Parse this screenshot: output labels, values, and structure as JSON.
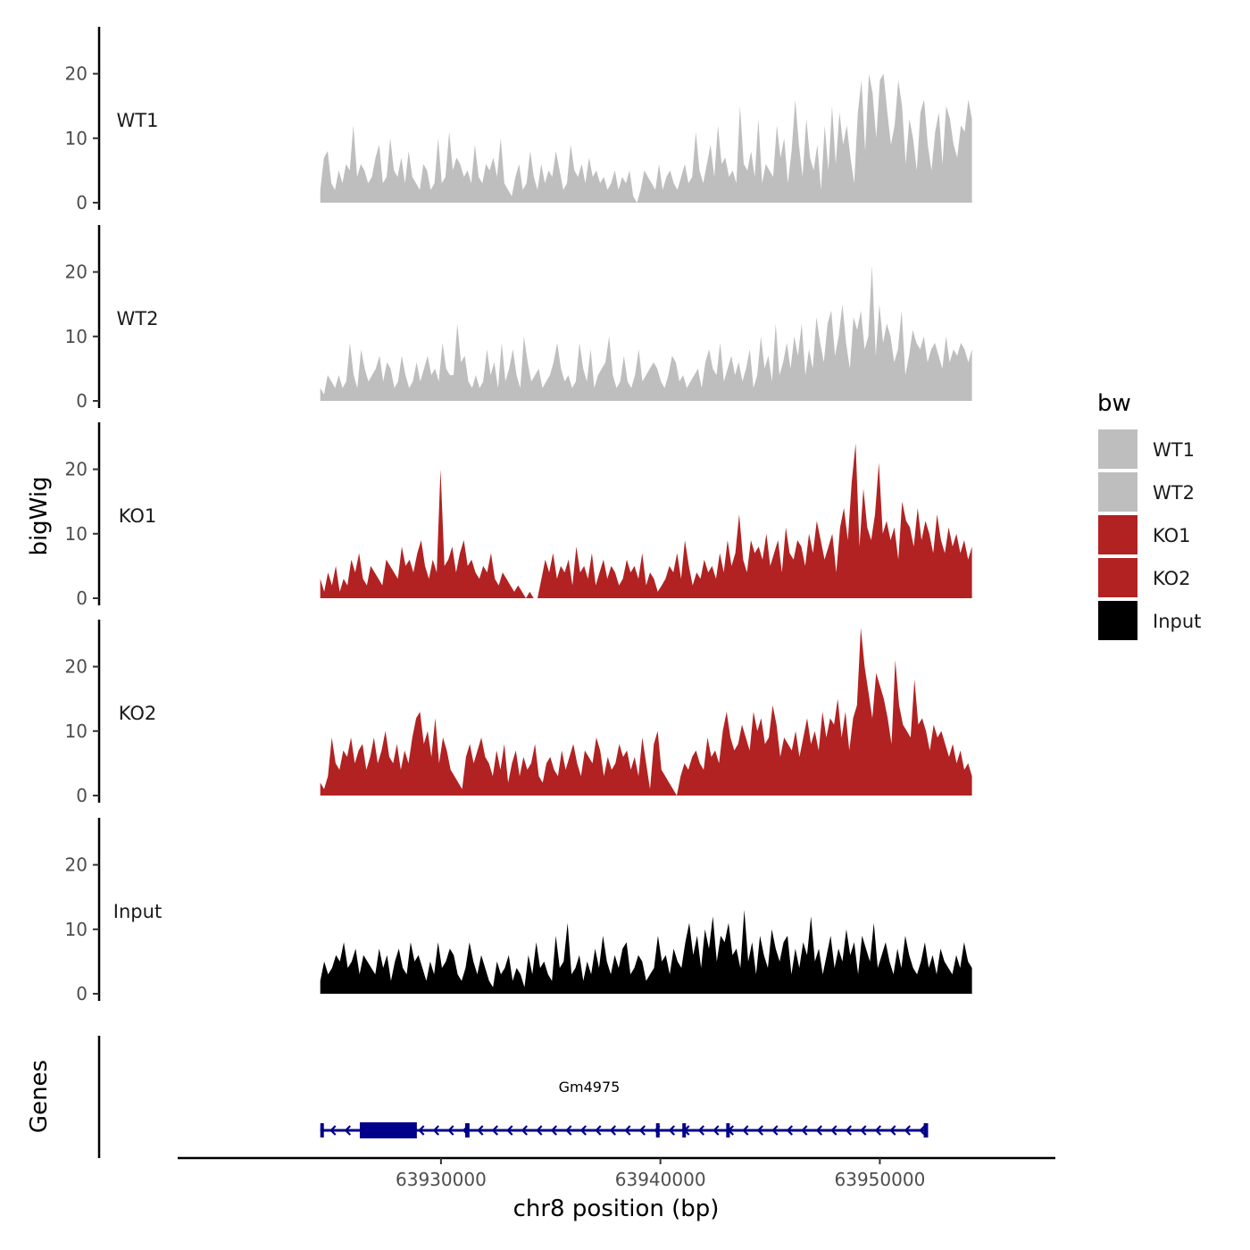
{
  "chart_data": {
    "type": "area",
    "title": "",
    "xlabel": "chr8 position (bp)",
    "ylabel": "bigWig",
    "gene_panel_label": "Genes",
    "xlim": [
      63918000,
      63958000
    ],
    "ylim": [
      0,
      26
    ],
    "x_ticks": [
      63930000,
      63940000,
      63950000
    ],
    "x_tick_labels": [
      "63930000",
      "63940000",
      "63950000"
    ],
    "y_ticks": [
      0,
      10,
      20
    ],
    "y_tick_labels": [
      "0",
      "10",
      "20"
    ],
    "legend": {
      "title": "bw",
      "position": "right",
      "entries": [
        {
          "label": "WT1",
          "color": "#bebebe"
        },
        {
          "label": "WT2",
          "color": "#bebebe"
        },
        {
          "label": "KO1",
          "color": "#b22222"
        },
        {
          "label": "KO2",
          "color": "#b22222"
        },
        {
          "label": "Input",
          "color": "#000000"
        }
      ]
    },
    "x_start": 63924500,
    "x_end": 63954200,
    "series": [
      {
        "name": "WT1",
        "color": "#bebebe",
        "values": [
          2,
          7,
          8,
          3,
          2,
          5,
          3,
          6,
          5,
          12,
          4,
          6,
          5,
          3,
          4,
          7,
          9,
          3,
          4,
          10,
          5,
          4,
          7,
          3,
          8,
          4,
          3,
          2,
          6,
          5,
          2,
          3,
          10,
          3,
          4,
          11,
          5,
          7,
          6,
          4,
          5,
          3,
          9,
          4,
          3,
          6,
          5,
          7,
          4,
          10,
          3,
          2,
          1,
          4,
          6,
          2,
          3,
          8,
          4,
          2,
          6,
          3,
          5,
          4,
          8,
          5,
          2,
          3,
          9,
          5,
          4,
          6,
          3,
          7,
          4,
          5,
          3,
          4,
          2,
          3,
          5,
          2,
          4,
          3,
          5,
          1,
          0,
          2,
          5,
          4,
          3,
          2,
          6,
          2,
          4,
          5,
          3,
          2,
          4,
          6,
          3,
          4,
          11,
          5,
          3,
          6,
          9,
          4,
          12,
          6,
          7,
          4,
          5,
          3,
          15,
          6,
          5,
          8,
          4,
          13,
          3,
          6,
          5,
          4,
          12,
          7,
          10,
          3,
          8,
          16,
          9,
          4,
          13,
          7,
          5,
          9,
          2,
          12,
          5,
          15,
          6,
          14,
          9,
          12,
          7,
          3,
          14,
          19,
          8,
          20,
          17,
          10,
          19,
          20,
          14,
          9,
          12,
          19,
          15,
          6,
          13,
          10,
          5,
          14,
          16,
          9,
          5,
          11,
          14,
          6,
          15,
          13,
          9,
          7,
          12,
          11,
          16,
          13
        ]
      },
      {
        "name": "WT2",
        "color": "#bebebe",
        "values": [
          2,
          1,
          4,
          3,
          2,
          4,
          2,
          3,
          9,
          4,
          2,
          8,
          5,
          3,
          4,
          5,
          7,
          3,
          6,
          5,
          2,
          3,
          7,
          4,
          2,
          3,
          6,
          3,
          5,
          7,
          4,
          5,
          3,
          9,
          5,
          4,
          4,
          12,
          6,
          7,
          3,
          2,
          4,
          2,
          3,
          8,
          4,
          6,
          2,
          9,
          3,
          5,
          8,
          4,
          2,
          10,
          6,
          3,
          4,
          5,
          2,
          3,
          4,
          6,
          9,
          5,
          3,
          4,
          2,
          3,
          9,
          5,
          3,
          8,
          2,
          4,
          5,
          6,
          10,
          4,
          2,
          3,
          7,
          3,
          2,
          4,
          8,
          3,
          4,
          5,
          6,
          5,
          3,
          2,
          4,
          7,
          6,
          3,
          4,
          2,
          3,
          4,
          5,
          2,
          6,
          8,
          5,
          4,
          9,
          3,
          5,
          7,
          4,
          6,
          3,
          5,
          8,
          2,
          4,
          10,
          5,
          7,
          3,
          12,
          4,
          6,
          9,
          5,
          10,
          7,
          12,
          4,
          8,
          5,
          13,
          9,
          6,
          12,
          14,
          7,
          10,
          15,
          9,
          5,
          13,
          11,
          14,
          8,
          10,
          21,
          7,
          15,
          9,
          12,
          10,
          6,
          8,
          14,
          4,
          7,
          11,
          9,
          8,
          10,
          6,
          8,
          9,
          7,
          5,
          10,
          6,
          8,
          7,
          9,
          8,
          6,
          8
        ]
      },
      {
        "name": "KO1",
        "color": "#b22222",
        "values": [
          3,
          1,
          4,
          2,
          5,
          1,
          3,
          2,
          6,
          4,
          7,
          3,
          2,
          5,
          4,
          3,
          2,
          6,
          5,
          4,
          3,
          8,
          5,
          6,
          4,
          7,
          9,
          5,
          3,
          6,
          4,
          20,
          5,
          6,
          8,
          4,
          7,
          9,
          5,
          6,
          4,
          3,
          5,
          4,
          7,
          3,
          2,
          4,
          3,
          2,
          1,
          2,
          1,
          0,
          1,
          0,
          0,
          3,
          6,
          4,
          7,
          3,
          5,
          4,
          6,
          2,
          8,
          4,
          5,
          3,
          7,
          2,
          4,
          6,
          3,
          5,
          4,
          2,
          3,
          6,
          4,
          5,
          3,
          7,
          2,
          4,
          3,
          1,
          2,
          3,
          5,
          4,
          7,
          3,
          9,
          5,
          2,
          4,
          3,
          6,
          4,
          5,
          3,
          7,
          4,
          9,
          5,
          7,
          13,
          6,
          4,
          9,
          7,
          8,
          6,
          10,
          5,
          7,
          9,
          4,
          11,
          7,
          6,
          9,
          8,
          5,
          10,
          7,
          12,
          9,
          6,
          8,
          10,
          4,
          11,
          14,
          9,
          18,
          24,
          8,
          17,
          11,
          9,
          13,
          21,
          10,
          12,
          9,
          11,
          6,
          15,
          12,
          11,
          8,
          14,
          9,
          12,
          10,
          7,
          13,
          9,
          7,
          11,
          8,
          10,
          7,
          9,
          6,
          8
        ]
      },
      {
        "name": "KO2",
        "color": "#b22222",
        "values": [
          2,
          1,
          3,
          9,
          5,
          4,
          7,
          6,
          9,
          5,
          7,
          8,
          4,
          6,
          9,
          5,
          7,
          10,
          6,
          5,
          8,
          4,
          7,
          5,
          9,
          12,
          13,
          8,
          10,
          6,
          12,
          5,
          9,
          7,
          4,
          3,
          2,
          1,
          6,
          8,
          5,
          7,
          9,
          6,
          5,
          3,
          7,
          4,
          8,
          2,
          5,
          7,
          3,
          6,
          4,
          5,
          8,
          3,
          2,
          5,
          6,
          4,
          3,
          7,
          4,
          6,
          8,
          5,
          3,
          7,
          6,
          5,
          9,
          7,
          3,
          6,
          4,
          5,
          8,
          6,
          7,
          4,
          6,
          3,
          9,
          5,
          1,
          8,
          10,
          4,
          3,
          2,
          1,
          0,
          3,
          5,
          4,
          6,
          7,
          5,
          4,
          9,
          6,
          7,
          5,
          10,
          13,
          9,
          7,
          8,
          11,
          9,
          7,
          13,
          10,
          12,
          8,
          9,
          14,
          11,
          6,
          9,
          8,
          7,
          10,
          6,
          9,
          12,
          8,
          10,
          7,
          13,
          9,
          12,
          11,
          15,
          9,
          13,
          7,
          12,
          14,
          26,
          20,
          16,
          12,
          19,
          17,
          15,
          12,
          8,
          21,
          14,
          11,
          10,
          9,
          18,
          11,
          12,
          10,
          7,
          11,
          9,
          10,
          8,
          6,
          8,
          5,
          7,
          4,
          5,
          3
        ]
      },
      {
        "name": "Input",
        "color": "#000000",
        "values": [
          2,
          5,
          3,
          4,
          6,
          5,
          8,
          4,
          5,
          7,
          3,
          6,
          5,
          4,
          3,
          7,
          4,
          6,
          2,
          5,
          7,
          4,
          3,
          8,
          5,
          6,
          4,
          2,
          5,
          3,
          8,
          4,
          5,
          7,
          6,
          3,
          2,
          4,
          8,
          5,
          3,
          6,
          4,
          2,
          1,
          5,
          3,
          4,
          6,
          2,
          4,
          3,
          1,
          6,
          3,
          8,
          4,
          5,
          3,
          2,
          9,
          4,
          5,
          11,
          3,
          4,
          6,
          2,
          5,
          3,
          7,
          4,
          9,
          5,
          3,
          6,
          4,
          7,
          8,
          3,
          4,
          6,
          5,
          2,
          3,
          4,
          9,
          5,
          6,
          3,
          7,
          5,
          4,
          8,
          11,
          6,
          9,
          4,
          10,
          7,
          12,
          5,
          9,
          8,
          11,
          6,
          7,
          4,
          13,
          5,
          8,
          3,
          9,
          6,
          4,
          10,
          7,
          5,
          8,
          9,
          3,
          7,
          4,
          8,
          6,
          12,
          5,
          7,
          3,
          6,
          9,
          4,
          7,
          5,
          10,
          6,
          8,
          3,
          9,
          7,
          5,
          11,
          4,
          6,
          8,
          5,
          3,
          7,
          4,
          9,
          6,
          4,
          3,
          5,
          8,
          4,
          6,
          3,
          7,
          5,
          4,
          3,
          6,
          4,
          8,
          5,
          4
        ]
      }
    ],
    "gene": {
      "name": "Gm4975",
      "strand": "-",
      "start": 63924500,
      "end": 63952200,
      "color": "#00008b",
      "exons": [
        {
          "start": 63924500,
          "end": 63924650,
          "type": "exon"
        },
        {
          "start": 63926300,
          "end": 63928900,
          "type": "utr"
        },
        {
          "start": 63931100,
          "end": 63931300,
          "type": "exon"
        },
        {
          "start": 63939800,
          "end": 63939900,
          "type": "exon"
        },
        {
          "start": 63941000,
          "end": 63941150,
          "type": "exon"
        },
        {
          "start": 63943000,
          "end": 63943100,
          "type": "exon"
        },
        {
          "start": 63952000,
          "end": 63952200,
          "type": "exon"
        }
      ]
    }
  }
}
